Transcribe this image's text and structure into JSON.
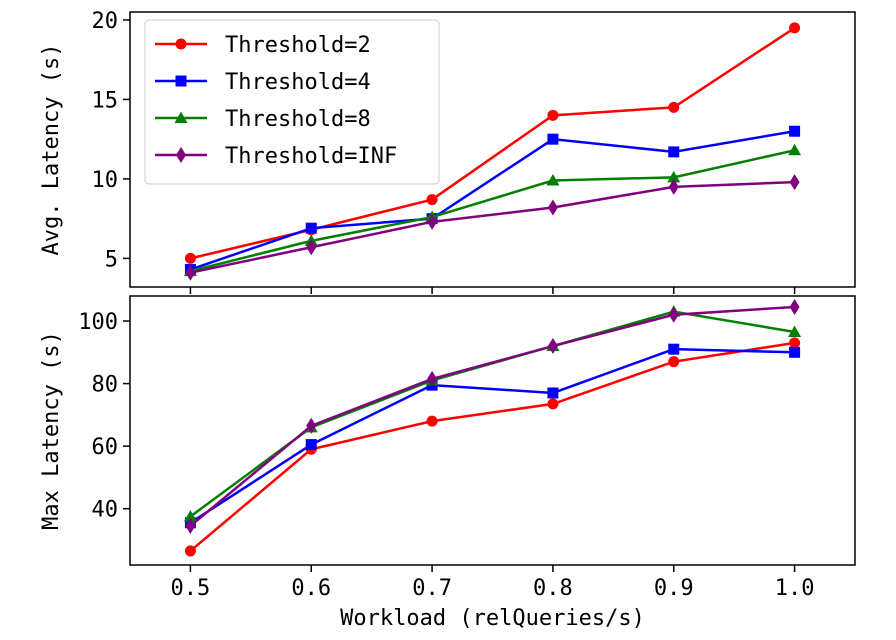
{
  "chart_data": {
    "type": "line",
    "x": [
      0.5,
      0.6,
      0.7,
      0.8,
      0.9,
      1.0
    ],
    "x_tick_labels": [
      "0.5",
      "0.6",
      "0.7",
      "0.8",
      "0.9",
      "1.0"
    ],
    "xlabel": "Workload (relQueries/s)",
    "xlim": [
      0.45,
      1.05
    ],
    "series_styles": [
      {
        "name": "Threshold=2",
        "color": "#ff0000",
        "marker": "circle"
      },
      {
        "name": "Threshold=4",
        "color": "#0000ff",
        "marker": "square"
      },
      {
        "name": "Threshold=8",
        "color": "#008000",
        "marker": "triangle"
      },
      {
        "name": "Threshold=INF",
        "color": "#800080",
        "marker": "diamond"
      }
    ],
    "legend": {
      "position": "upper-left-of-top-panel",
      "entries": [
        "Threshold=2",
        "Threshold=4",
        "Threshold=8",
        "Threshold=INF"
      ]
    },
    "panels": [
      {
        "ylabel": "Avg. Latency (s)",
        "ylim": [
          3.2,
          20.5
        ],
        "y_ticks": [
          5,
          10,
          15,
          20
        ],
        "y_tick_labels": [
          "5",
          "10",
          "15",
          "20"
        ],
        "series": [
          {
            "name": "Threshold=2",
            "values": [
              5.0,
              6.8,
              8.7,
              14.0,
              14.5,
              19.5
            ]
          },
          {
            "name": "Threshold=4",
            "values": [
              4.3,
              6.9,
              7.5,
              12.5,
              11.7,
              13.0
            ]
          },
          {
            "name": "Threshold=8",
            "values": [
              4.2,
              6.1,
              7.6,
              9.9,
              10.1,
              11.8
            ]
          },
          {
            "name": "Threshold=INF",
            "values": [
              4.1,
              5.7,
              7.3,
              8.2,
              9.5,
              9.8
            ]
          }
        ]
      },
      {
        "ylabel": "Max Latency (s)",
        "ylim": [
          22,
          108
        ],
        "y_ticks": [
          40,
          60,
          80,
          100
        ],
        "y_tick_labels": [
          "40",
          "60",
          "80",
          "100"
        ],
        "series": [
          {
            "name": "Threshold=2",
            "values": [
              26.5,
              59.0,
              68.0,
              73.5,
              87.0,
              93.0
            ]
          },
          {
            "name": "Threshold=4",
            "values": [
              35.5,
              60.5,
              79.5,
              77.0,
              91.0,
              90.0
            ]
          },
          {
            "name": "Threshold=8",
            "values": [
              37.5,
              66.0,
              81.0,
              92.0,
              103.0,
              96.5
            ]
          },
          {
            "name": "Threshold=INF",
            "values": [
              34.5,
              66.5,
              81.5,
              92.0,
              102.0,
              104.5
            ]
          }
        ]
      }
    ]
  }
}
